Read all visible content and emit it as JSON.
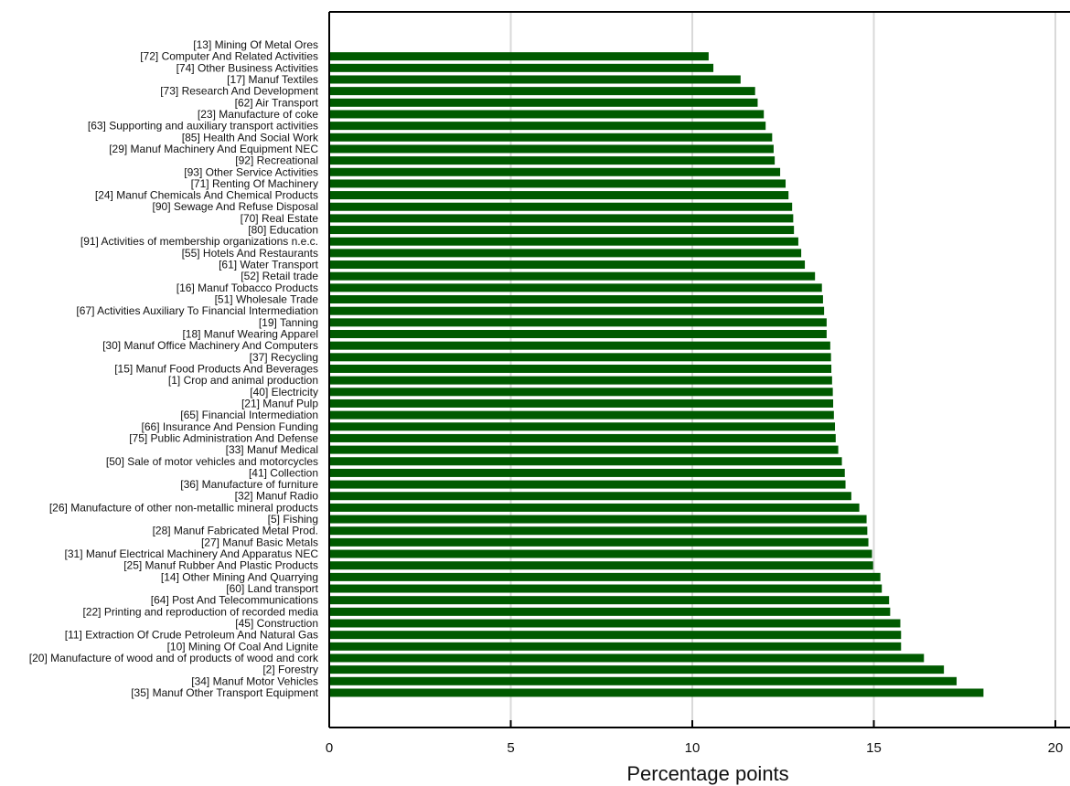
{
  "chart_data": {
    "type": "bar",
    "orientation": "horizontal",
    "xlabel": "Percentage points",
    "ylabel": "",
    "xlim": [
      0,
      20
    ],
    "xticks": [
      0,
      5,
      10,
      15,
      20
    ],
    "grid": true,
    "bar_color": "#005a00",
    "categories": [
      "[13] Mining Of Metal Ores",
      "[72] Computer And Related Activities",
      "[74] Other Business Activities",
      "[17] Manuf Textiles",
      "[73] Research And Development",
      "[62] Air Transport",
      "[23] Manufacture of coke",
      "[63] Supporting and auxiliary transport activities",
      "[85] Health And Social Work",
      "[29] Manuf Machinery And Equipment NEC",
      "[92] Recreational",
      "[93] Other Service Activities",
      "[71] Renting Of Machinery",
      "[24] Manuf Chemicals And Chemical Products",
      "[90] Sewage And Refuse Disposal",
      "[70] Real Estate",
      "[80] Education",
      "[91] Activities of membership organizations n.e.c.",
      "[55] Hotels And Restaurants",
      "[61] Water Transport",
      "[52] Retail trade",
      "[16] Manuf Tobacco Products",
      "[51] Wholesale Trade",
      "[67] Activities Auxiliary To Financial Intermediation",
      "[19] Tanning",
      "[18] Manuf Wearing Apparel",
      "[30] Manuf Office Machinery And Computers",
      "[37] Recycling",
      "[15] Manuf Food Products And Beverages",
      "[1] Crop and animal production",
      "[40] Electricity",
      "[21] Manuf Pulp",
      "[65] Financial Intermediation",
      "[66] Insurance And Pension Funding",
      "[75] Public Administration And Defense",
      "[33] Manuf Medical",
      "[50] Sale of motor vehicles and motorcycles",
      "[41] Collection",
      "[36] Manufacture of furniture",
      "[32] Manuf Radio",
      "[26] Manufacture of other non-metallic mineral products",
      "[5] Fishing",
      "[28] Manuf Fabricated Metal Prod.",
      "[27] Manuf Basic Metals",
      "[31] Manuf Electrical Machinery And Apparatus NEC",
      "[25] Manuf Rubber And Plastic Products",
      "[14] Other Mining And Quarrying",
      "[60] Land transport",
      "[64] Post And Telecommunications",
      "[22] Printing and reproduction of recorded media",
      "[45] Construction",
      "[11] Extraction Of Crude Petroleum And Natural Gas",
      "[10] Mining Of Coal And Lignite",
      "[20] Manufacture of wood and of products of wood and cork",
      "[2] Forestry",
      "[34] Manuf Motor Vehicles",
      "[35] Manuf Other Transport Equipment"
    ],
    "values": [
      0,
      10.45,
      10.58,
      11.33,
      11.73,
      11.8,
      11.97,
      12.02,
      12.2,
      12.24,
      12.27,
      12.42,
      12.57,
      12.65,
      12.75,
      12.78,
      12.8,
      12.92,
      13.0,
      13.1,
      13.38,
      13.57,
      13.6,
      13.63,
      13.7,
      13.7,
      13.8,
      13.82,
      13.83,
      13.85,
      13.87,
      13.88,
      13.9,
      13.93,
      13.95,
      14.02,
      14.12,
      14.2,
      14.22,
      14.38,
      14.6,
      14.8,
      14.82,
      14.85,
      14.95,
      14.98,
      15.18,
      15.22,
      15.42,
      15.45,
      15.73,
      15.75,
      15.75,
      16.38,
      16.93,
      17.28,
      18.02
    ]
  }
}
